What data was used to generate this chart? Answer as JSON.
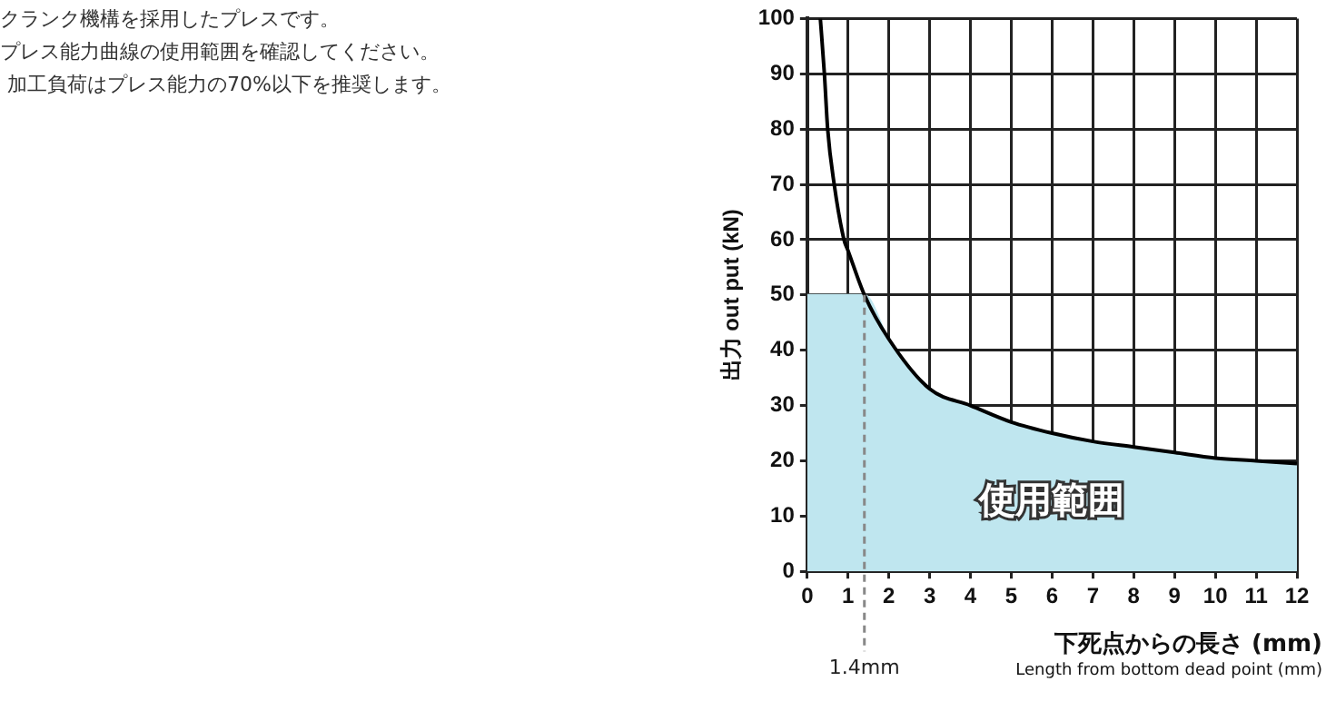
{
  "chart_data": {
    "type": "line",
    "xlabel": "下死点からの長さ (mm)\nLength from bottom dead point (mm)",
    "ylabel": "出力 out put (kN)",
    "annotations": [
      "クランク機構を採用したプレスです。",
      "プレス能力曲線の使用範囲を確認してください。",
      "加工負荷はプレス能力の70%以下を推奨します。"
    ],
    "series": [
      {
        "name": "使用範囲",
        "type": "area",
        "color": "#bfe6ef",
        "x": [
          0,
          1.4,
          2,
          3,
          4,
          5,
          6,
          7,
          8,
          9,
          10,
          11,
          12
        ],
        "values": [
          50,
          50,
          42,
          33,
          30,
          27,
          25,
          23.5,
          22.5,
          21.5,
          20.5,
          20,
          19.5
        ]
      },
      {
        "color": "#000000",
        "x": [
          0.32,
          0.42,
          0.5,
          0.66,
          0.9,
          1,
          1.4,
          2,
          3,
          4,
          5,
          6,
          7,
          8,
          9,
          10,
          11,
          12
        ],
        "values": [
          100,
          90,
          80,
          70,
          60,
          58,
          50,
          42,
          33,
          30,
          27,
          25,
          23.5,
          22.5,
          21.5,
          20.5,
          20,
          19.5
        ]
      }
    ],
    "xlim": [
      0,
      12
    ],
    "xticks": [
      0,
      1,
      2,
      3,
      4,
      5,
      6,
      7,
      8,
      9,
      10,
      11,
      12
    ],
    "ylim": [
      0,
      100
    ],
    "yticks": [
      0,
      10,
      20,
      30,
      40,
      50,
      60,
      70,
      80,
      90,
      100
    ],
    "ref_lines": [
      {
        "axis": "x",
        "value": 1.4,
        "label": "1.4mm",
        "line_style": "dashed",
        "color": "#888888"
      }
    ],
    "grid": true,
    "legend": false,
    "marker": "none",
    "line_style": "solid"
  }
}
